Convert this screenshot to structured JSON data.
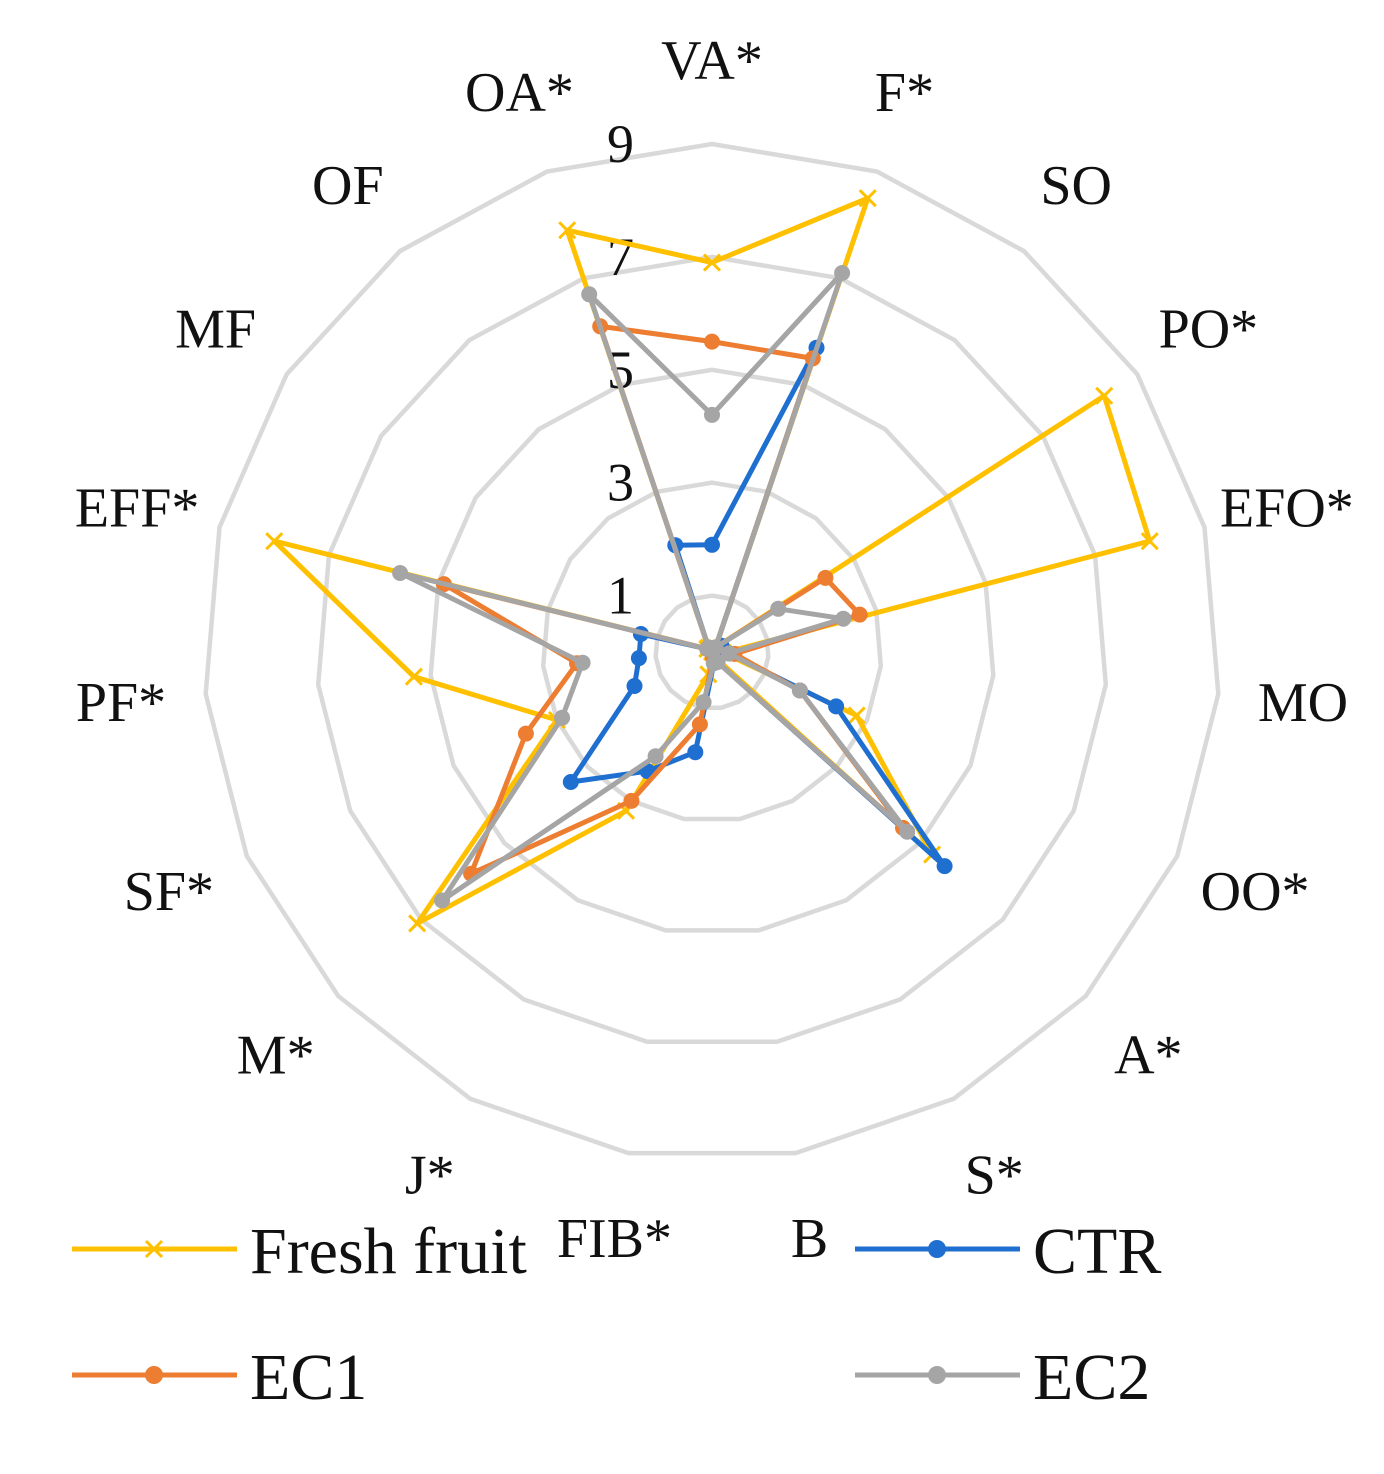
{
  "chart_data": {
    "type": "radar",
    "axes": [
      "VA*",
      "F*",
      "SO",
      "PO*",
      "EFO*",
      "MO",
      "OO*",
      "A*",
      "S*",
      "B",
      "FIB*",
      "J*",
      "M*",
      "SF*",
      "PF*",
      "EFF*",
      "MF",
      "OF",
      "OA*"
    ],
    "rlim": [
      0,
      9
    ],
    "gridlines": [
      1,
      3,
      5,
      7,
      9
    ],
    "tick_labels": [
      "1",
      "3",
      "5",
      "7",
      "9"
    ],
    "grid": true,
    "legend_position": "bottom",
    "series": [
      {
        "name": "Fresh fruit",
        "color": "#FFC000",
        "marker": "x",
        "values": [
          6.9,
          8.5,
          0.1,
          8.3,
          8.0,
          0.2,
          2.8,
          5.3,
          0.1,
          0.0,
          0.4,
          3.2,
          7.1,
          3.0,
          5.3,
          8.0,
          0.1,
          0.1,
          7.9
        ]
      },
      {
        "name": "CTR",
        "color": "#1F6FD0",
        "marker": "circle",
        "values": [
          1.9,
          5.7,
          0.1,
          0.2,
          0.2,
          0.3,
          2.4,
          5.6,
          0.2,
          0.2,
          1.8,
          2.4,
          3.4,
          1.5,
          1.3,
          1.3,
          0.1,
          0.1,
          2.0
        ]
      },
      {
        "name": "EC1",
        "color": "#ED7D31",
        "marker": "circle",
        "values": [
          5.5,
          5.5,
          0.1,
          2.4,
          2.7,
          0.4,
          1.7,
          4.6,
          0.2,
          0.1,
          1.3,
          3.0,
          5.8,
          3.6,
          2.4,
          4.9,
          0.1,
          0.1,
          6.1
        ]
      },
      {
        "name": "EC2",
        "color": "#A5A5A5",
        "marker": "circle",
        "values": [
          4.2,
          7.1,
          0.1,
          1.4,
          2.4,
          0.3,
          1.7,
          4.7,
          0.2,
          0.2,
          0.9,
          2.1,
          6.5,
          2.9,
          2.3,
          5.7,
          0.1,
          0.1,
          6.7
        ]
      }
    ]
  }
}
